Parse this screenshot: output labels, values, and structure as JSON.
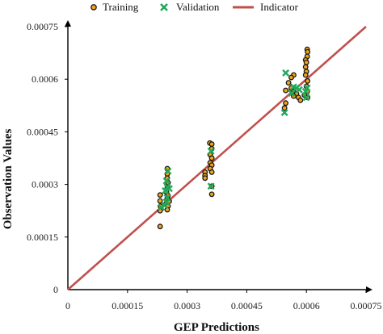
{
  "chart_data": {
    "type": "scatter",
    "title": "",
    "xlabel": "GEP Predictions",
    "ylabel": "Observation Values",
    "xlim": [
      0,
      0.00075
    ],
    "ylim": [
      0,
      0.00075
    ],
    "x_ticks": [
      "0",
      "0.00015",
      "0.0003",
      "0.00045",
      "0.0006",
      "0.00075"
    ],
    "y_ticks": [
      "0",
      "0.00015",
      "0.0003",
      "0.00045",
      "0.0006",
      "0.00075"
    ],
    "grid": false,
    "legend": "top",
    "series": [
      {
        "name": "Training",
        "marker": "circle",
        "color": "#f2a51a",
        "edge_color": "#1a1a1a",
        "points": [
          [
            0.00025,
            0.000345
          ],
          [
            0.00025,
            0.00033
          ],
          [
            0.00025,
            0.000318
          ],
          [
            0.000252,
            0.000305
          ],
          [
            0.00025,
            0.00029
          ],
          [
            0.000248,
            0.000278
          ],
          [
            0.000252,
            0.000268
          ],
          [
            0.00025,
            0.00026
          ],
          [
            0.000255,
            0.000252
          ],
          [
            0.000247,
            0.000245
          ],
          [
            0.000252,
            0.000238
          ],
          [
            0.00025,
            0.000228
          ],
          [
            0.000232,
            0.00027
          ],
          [
            0.000232,
            0.000253
          ],
          [
            0.000233,
            0.000238
          ],
          [
            0.000232,
            0.000225
          ],
          [
            0.000232,
            0.00018
          ],
          [
            0.000357,
            0.000418
          ],
          [
            0.000362,
            0.000415
          ],
          [
            0.000362,
            0.000402
          ],
          [
            0.000358,
            0.000385
          ],
          [
            0.000362,
            0.000375
          ],
          [
            0.000358,
            0.000362
          ],
          [
            0.000362,
            0.000355
          ],
          [
            0.000358,
            0.000345
          ],
          [
            0.000362,
            0.000335
          ],
          [
            0.000345,
            0.000335
          ],
          [
            0.000345,
            0.000325
          ],
          [
            0.000345,
            0.000318
          ],
          [
            0.000362,
            0.000295
          ],
          [
            0.000362,
            0.000272
          ],
          [
            0.000602,
            0.000685
          ],
          [
            0.000603,
            0.000678
          ],
          [
            0.000602,
            0.000665
          ],
          [
            0.000598,
            0.000655
          ],
          [
            0.0006,
            0.000648
          ],
          [
            0.000598,
            0.000635
          ],
          [
            0.0006,
            0.000622
          ],
          [
            0.000598,
            0.000612
          ],
          [
            0.000603,
            0.000595
          ],
          [
            0.0006,
            0.00058
          ],
          [
            0.000568,
            0.000612
          ],
          [
            0.000562,
            0.000605
          ],
          [
            0.000555,
            0.00059
          ],
          [
            0.000548,
            0.000568
          ],
          [
            0.000562,
            0.000575
          ],
          [
            0.000568,
            0.000565
          ],
          [
            0.000575,
            0.000558
          ],
          [
            0.000568,
            0.000552
          ],
          [
            0.000548,
            0.000532
          ],
          [
            0.000545,
            0.000518
          ],
          [
            0.00058,
            0.000548
          ],
          [
            0.000585,
            0.00054
          ],
          [
            0.000595,
            0.000555
          ],
          [
            0.000602,
            0.000565
          ],
          [
            0.000603,
            0.000548
          ]
        ]
      },
      {
        "name": "Validation",
        "marker": "x",
        "color": "#22a85a",
        "points": [
          [
            0.000252,
            0.000338
          ],
          [
            0.000248,
            0.00031
          ],
          [
            0.00025,
            0.000292
          ],
          [
            0.000255,
            0.000288
          ],
          [
            0.000245,
            0.000282
          ],
          [
            0.00025,
            0.000262
          ],
          [
            0.000248,
            0.00025
          ],
          [
            0.000235,
            0.000235
          ],
          [
            0.000243,
            0.00024
          ],
          [
            0.00036,
            0.000395
          ],
          [
            0.00036,
            0.000295
          ],
          [
            0.000548,
            0.000618
          ],
          [
            0.000568,
            0.000578
          ],
          [
            0.000575,
            0.000575
          ],
          [
            0.000563,
            0.00056
          ],
          [
            0.000582,
            0.00057
          ],
          [
            0.000602,
            0.000575
          ],
          [
            0.000598,
            0.000565
          ],
          [
            0.0006,
            0.000548
          ],
          [
            0.000545,
            0.000505
          ]
        ]
      },
      {
        "name": "Indicator",
        "type": "line",
        "color": "#c0504d",
        "points": [
          [
            0,
            0
          ],
          [
            0.00075,
            0.00075
          ]
        ]
      }
    ]
  }
}
